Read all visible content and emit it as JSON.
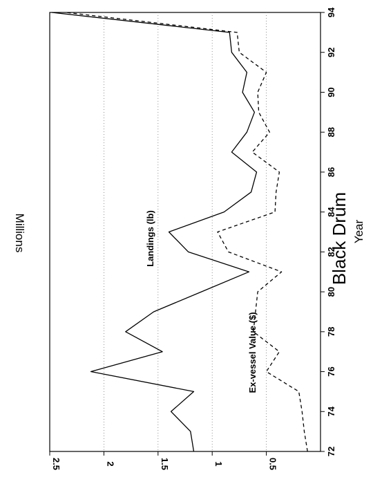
{
  "chart_data": {
    "type": "line",
    "title": "Black Drum",
    "xlabel": "Year",
    "ylabel": "Millions",
    "xlim": [
      72,
      94
    ],
    "ylim": [
      0,
      2.5
    ],
    "xticks": [
      "72",
      "74",
      "76",
      "78",
      "80",
      "82",
      "84",
      "86",
      "88",
      "90",
      "92",
      "94"
    ],
    "yticks": [
      "2.5",
      "2",
      "1.5",
      "1",
      "0.5"
    ],
    "grid": "dotted horizontal at 0.5, 1, 1.5, 2",
    "orientation": "rotated 90 degrees clockwise",
    "series": [
      {
        "name": "Landings (lb)",
        "style": "solid",
        "x": [
          72,
          73,
          74,
          75,
          76,
          77,
          78,
          79,
          80,
          81,
          82,
          83,
          84,
          85,
          86,
          87,
          88,
          89,
          90,
          91,
          92,
          93,
          94
        ],
        "y": [
          1.17,
          1.2,
          1.38,
          1.17,
          2.12,
          1.46,
          1.8,
          1.54,
          1.1,
          0.66,
          1.22,
          1.4,
          0.89,
          0.64,
          0.59,
          0.82,
          0.68,
          0.61,
          0.72,
          0.68,
          0.82,
          0.84,
          2.48
        ]
      },
      {
        "name": "Ex-vessel Value ($)",
        "style": "dashed",
        "x": [
          72,
          73,
          74,
          75,
          76,
          77,
          78,
          79,
          80,
          81,
          82,
          83,
          84,
          85,
          86,
          87,
          88,
          89,
          90,
          91,
          92,
          93,
          94
        ],
        "y": [
          0.12,
          0.15,
          0.17,
          0.2,
          0.5,
          0.38,
          0.62,
          0.6,
          0.58,
          0.36,
          0.85,
          0.95,
          0.42,
          0.41,
          0.38,
          0.63,
          0.47,
          0.57,
          0.58,
          0.5,
          0.75,
          0.77,
          2.35
        ]
      }
    ]
  }
}
